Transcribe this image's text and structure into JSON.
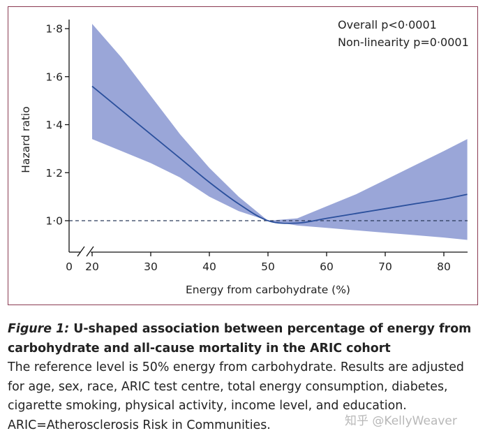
{
  "chart_data": {
    "type": "line",
    "title": "",
    "xlabel": "Energy from carbohydrate (%)",
    "ylabel": "Hazard ratio",
    "xlim": [
      0,
      85
    ],
    "ylim": [
      0.88,
      1.85
    ],
    "xticks": [
      0,
      20,
      30,
      40,
      50,
      60,
      70,
      80
    ],
    "xtick_labels": [
      "0",
      "20",
      "30",
      "40",
      "50",
      "60",
      "70",
      "80"
    ],
    "yticks": [
      1.0,
      1.2,
      1.4,
      1.6,
      1.8
    ],
    "ytick_labels": [
      "1·0",
      "1·2",
      "1·4",
      "1·6",
      "1·8"
    ],
    "reference_line": 1.0,
    "annotations": [
      "Overall p<0·0001",
      "Non-linearity p=0·0001"
    ],
    "series": [
      {
        "name": "Hazard ratio",
        "color": "#2a4f9c",
        "x": [
          20,
          25,
          30,
          35,
          40,
          45,
          50,
          55,
          60,
          65,
          70,
          75,
          80,
          84
        ],
        "y": [
          1.56,
          1.46,
          1.36,
          1.26,
          1.16,
          1.07,
          1.0,
          0.99,
          1.01,
          1.03,
          1.05,
          1.07,
          1.09,
          1.11
        ]
      }
    ],
    "confidence_band": {
      "color": "#9aa6d8",
      "x": [
        20,
        25,
        30,
        35,
        40,
        45,
        50,
        55,
        60,
        65,
        70,
        75,
        80,
        84
      ],
      "lower": [
        1.34,
        1.29,
        1.24,
        1.18,
        1.1,
        1.04,
        1.0,
        0.98,
        0.97,
        0.96,
        0.95,
        0.94,
        0.93,
        0.92
      ],
      "upper": [
        1.82,
        1.68,
        1.52,
        1.36,
        1.22,
        1.1,
        1.0,
        1.01,
        1.06,
        1.11,
        1.17,
        1.23,
        1.29,
        1.34
      ]
    }
  },
  "caption": {
    "figure_label": "Figure 1:",
    "title": "U-shaped association between percentage of energy from carbohydrate and all-cause mortality in the ARIC cohort",
    "body": "The reference level is 50% energy from carbohydrate. Results are adjusted for age, sex, race, ARIC test centre, total energy consumption, diabetes, cigarette smoking, physical activity, income level, and education. ARIC=Atherosclerosis Risk in Communities."
  },
  "watermark": "知乎 @KellyWeaver"
}
